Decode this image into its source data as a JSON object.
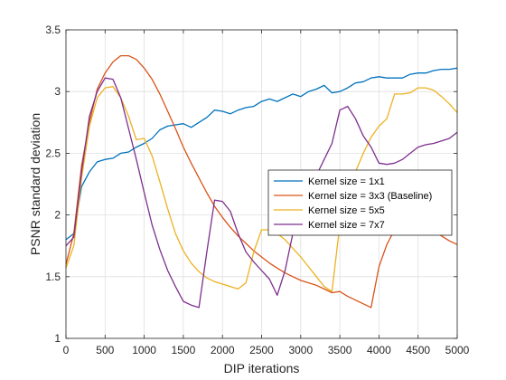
{
  "chart_data": {
    "type": "line",
    "xlabel": "DIP iterations",
    "ylabel": "PSNR standard deviation",
    "xlim": [
      0,
      5000
    ],
    "ylim": [
      1,
      3.5
    ],
    "xticks": [
      0,
      500,
      1000,
      1500,
      2000,
      2500,
      3000,
      3500,
      4000,
      4500,
      5000
    ],
    "yticks": [
      1,
      1.5,
      2,
      2.5,
      3,
      3.5
    ],
    "xtick_labels": [
      "0",
      "500",
      "1000",
      "1500",
      "2000",
      "2500",
      "3000",
      "3500",
      "4000",
      "4500",
      "5000"
    ],
    "ytick_labels": [
      "1",
      "1.5",
      "2",
      "2.5",
      "3",
      "3.5"
    ],
    "grid": true,
    "legend_position": "center-right",
    "series": [
      {
        "name": "Kernel size = 1x1",
        "color": "#0072BD",
        "x": [
          0,
          100,
          200,
          300,
          400,
          500,
          600,
          700,
          800,
          900,
          1000,
          1100,
          1200,
          1300,
          1400,
          1500,
          1600,
          1700,
          1800,
          1900,
          2000,
          2100,
          2200,
          2300,
          2400,
          2500,
          2600,
          2700,
          2800,
          2900,
          3000,
          3100,
          3200,
          3300,
          3400,
          3500,
          3600,
          3700,
          3800,
          3900,
          4000,
          4100,
          4200,
          4300,
          4400,
          4500,
          4600,
          4700,
          4800,
          4900,
          5000
        ],
        "y": [
          1.8,
          1.85,
          2.23,
          2.35,
          2.43,
          2.45,
          2.46,
          2.5,
          2.51,
          2.55,
          2.58,
          2.62,
          2.69,
          2.72,
          2.73,
          2.74,
          2.71,
          2.75,
          2.79,
          2.85,
          2.84,
          2.82,
          2.85,
          2.87,
          2.88,
          2.92,
          2.94,
          2.92,
          2.95,
          2.98,
          2.96,
          3.0,
          3.02,
          3.05,
          2.99,
          3.0,
          3.03,
          3.07,
          3.08,
          3.11,
          3.12,
          3.11,
          3.11,
          3.11,
          3.14,
          3.15,
          3.15,
          3.17,
          3.18,
          3.18,
          3.19
        ]
      },
      {
        "name": "Kernel size = 3x3 (Baseline)",
        "color": "#D95319",
        "x": [
          0,
          100,
          200,
          300,
          400,
          500,
          600,
          700,
          800,
          900,
          1000,
          1100,
          1200,
          1300,
          1400,
          1500,
          1600,
          1700,
          1800,
          1900,
          2000,
          2100,
          2200,
          2300,
          2400,
          2500,
          2600,
          2700,
          2800,
          2900,
          3000,
          3100,
          3200,
          3300,
          3400,
          3500,
          3600,
          3700,
          3800,
          3900,
          4000,
          4100,
          4200,
          4300,
          4400,
          4500,
          4600,
          4700,
          4800,
          4900,
          5000
        ],
        "y": [
          1.6,
          1.85,
          2.4,
          2.75,
          3.02,
          3.15,
          3.24,
          3.29,
          3.29,
          3.26,
          3.19,
          3.1,
          2.98,
          2.84,
          2.7,
          2.55,
          2.42,
          2.3,
          2.18,
          2.07,
          1.98,
          1.9,
          1.83,
          1.77,
          1.71,
          1.66,
          1.61,
          1.57,
          1.53,
          1.5,
          1.47,
          1.45,
          1.43,
          1.4,
          1.37,
          1.38,
          1.34,
          1.31,
          1.28,
          1.25,
          1.58,
          1.76,
          1.88,
          1.93,
          1.93,
          1.92,
          1.9,
          1.87,
          1.83,
          1.79,
          1.76
        ]
      },
      {
        "name": "Kernel size = 5x5",
        "color": "#EDB120",
        "x": [
          0,
          100,
          200,
          300,
          400,
          500,
          600,
          700,
          800,
          900,
          1000,
          1100,
          1200,
          1300,
          1400,
          1500,
          1600,
          1700,
          1800,
          1900,
          2000,
          2100,
          2200,
          2300,
          2400,
          2500,
          2600,
          2700,
          2800,
          2900,
          3000,
          3100,
          3200,
          3300,
          3400,
          3500,
          3600,
          3700,
          3800,
          3900,
          4000,
          4100,
          4200,
          4300,
          4400,
          4500,
          4600,
          4700,
          4800,
          4900,
          5000
        ],
        "y": [
          1.57,
          1.75,
          2.3,
          2.72,
          2.95,
          3.03,
          3.04,
          2.95,
          2.8,
          2.61,
          2.62,
          2.48,
          2.27,
          2.05,
          1.85,
          1.71,
          1.61,
          1.54,
          1.49,
          1.46,
          1.44,
          1.42,
          1.4,
          1.45,
          1.7,
          1.88,
          1.88,
          1.85,
          1.8,
          1.73,
          1.66,
          1.58,
          1.5,
          1.42,
          1.38,
          1.92,
          2.15,
          2.35,
          2.5,
          2.63,
          2.72,
          2.78,
          2.98,
          2.98,
          2.99,
          3.03,
          3.03,
          3.01,
          2.96,
          2.9,
          2.83
        ]
      },
      {
        "name": "Kernel size = 7x7",
        "color": "#7E2F8E",
        "x": [
          0,
          100,
          200,
          300,
          400,
          500,
          600,
          700,
          800,
          900,
          1000,
          1100,
          1200,
          1300,
          1400,
          1500,
          1600,
          1700,
          1800,
          1900,
          2000,
          2100,
          2200,
          2300,
          2400,
          2500,
          2600,
          2700,
          2800,
          2900,
          3000,
          3100,
          3200,
          3300,
          3400,
          3500,
          3600,
          3700,
          3800,
          3900,
          4000,
          4100,
          4200,
          4300,
          4400,
          4500,
          4600,
          4700,
          4800,
          4900,
          5000
        ],
        "y": [
          1.75,
          1.82,
          2.35,
          2.8,
          3.0,
          3.11,
          3.1,
          2.95,
          2.7,
          2.45,
          2.18,
          1.92,
          1.72,
          1.55,
          1.42,
          1.3,
          1.27,
          1.25,
          1.7,
          2.12,
          2.11,
          2.03,
          1.85,
          1.7,
          1.62,
          1.55,
          1.48,
          1.35,
          1.55,
          1.85,
          2.0,
          2.12,
          2.32,
          2.45,
          2.58,
          2.85,
          2.88,
          2.78,
          2.64,
          2.55,
          2.42,
          2.41,
          2.42,
          2.45,
          2.5,
          2.55,
          2.57,
          2.58,
          2.6,
          2.62,
          2.67
        ]
      }
    ]
  }
}
